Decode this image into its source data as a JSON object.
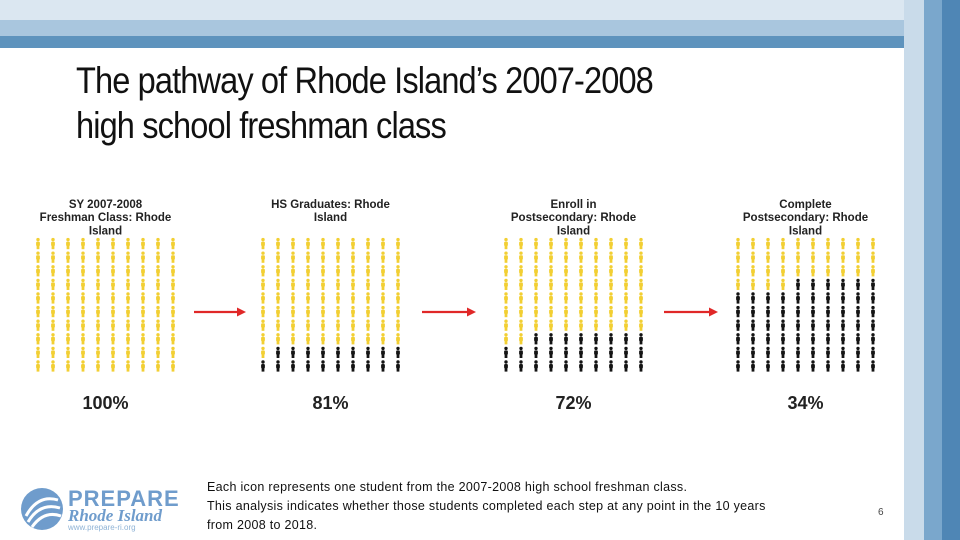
{
  "title_line1": "The pathway of Rhode Island’s 2007-2008",
  "title_line2": "high school freshman class",
  "caption_lines": [
    "Each icon represents one student from the 2007-2008 high school freshman class.",
    "This analysis indicates whether those students completed each step at any point in the 10 years",
    "from 2008 to 2018."
  ],
  "page_number": "6",
  "logo": {
    "line1": "PREPARE",
    "line2": "Rhode Island",
    "line3": "www.prepare-ri.org"
  },
  "colors": {
    "completed": "#f2cf33",
    "not_completed": "#141414",
    "arrow": "#e02828",
    "brand": "#6f9ccc"
  },
  "chart_data": {
    "type": "icon-array",
    "units_per_panel": 100,
    "panels": [
      {
        "label_lines": [
          "SY 2007-2008",
          "Freshman Class: Rhode",
          "Island"
        ],
        "value": 100,
        "value_label": "100%"
      },
      {
        "label_lines": [
          "HS Graduates: Rhode",
          "Island"
        ],
        "value": 81,
        "value_label": "81%"
      },
      {
        "label_lines": [
          "Enroll in",
          "Postsecondary: Rhode",
          "Island"
        ],
        "value": 72,
        "value_label": "72%"
      },
      {
        "label_lines": [
          "Complete",
          "Postsecondary: Rhode",
          "Island"
        ],
        "value": 34,
        "value_label": "34%"
      }
    ]
  }
}
